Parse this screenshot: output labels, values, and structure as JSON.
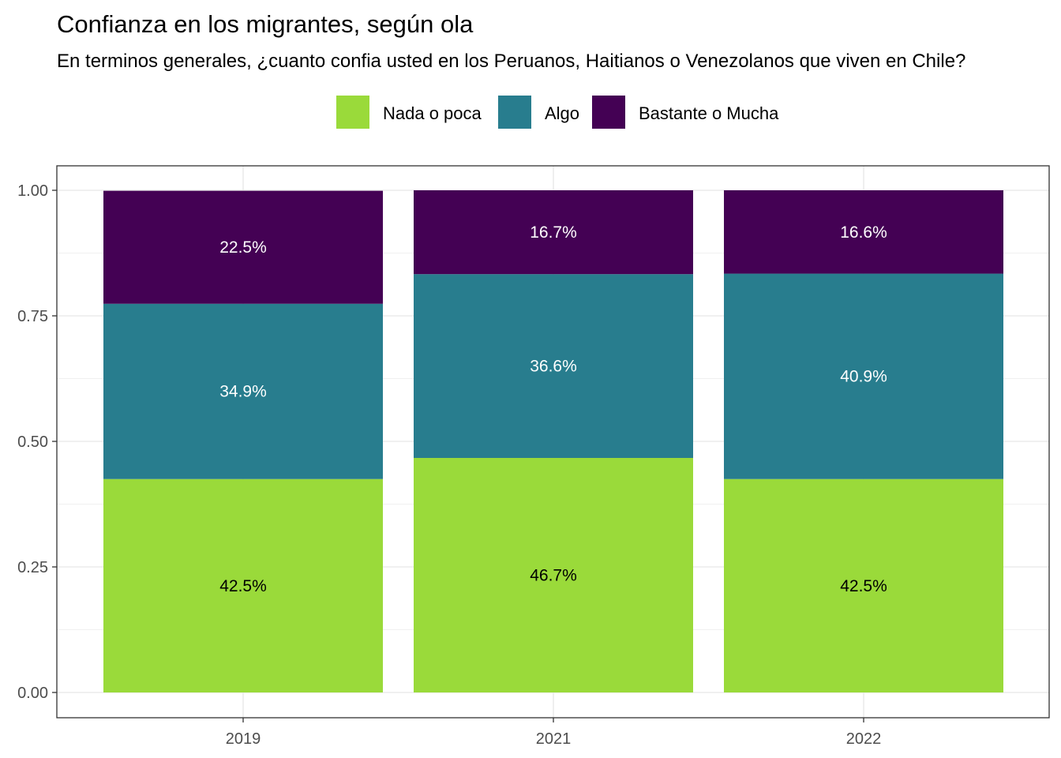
{
  "chart_data": {
    "type": "bar",
    "stacked": true,
    "title": "Confianza en los migrantes, según ola",
    "subtitle": "En terminos generales, ¿cuanto confia usted en los Peruanos, Haitianos o Venezolanos que viven en Chile?",
    "xlabel": "",
    "ylabel": "",
    "categories": [
      "2019",
      "2021",
      "2022"
    ],
    "ylim": [
      0,
      1
    ],
    "yticks": [
      "0.00",
      "0.25",
      "0.50",
      "0.75",
      "1.00"
    ],
    "grid": true,
    "legend_position": "top",
    "series": [
      {
        "name": "Nada o poca",
        "values": [
          0.425,
          0.467,
          0.425
        ],
        "labels": [
          "42.5%",
          "46.7%",
          "42.5%"
        ],
        "color": "#9ADA3A",
        "label_color": "#000000"
      },
      {
        "name": "Algo",
        "values": [
          0.349,
          0.366,
          0.409
        ],
        "labels": [
          "34.9%",
          "36.6%",
          "40.9%"
        ],
        "color": "#287D8E",
        "label_color": "#ffffff"
      },
      {
        "name": "Bastante o Mucha",
        "values": [
          0.225,
          0.167,
          0.166
        ],
        "labels": [
          "22.5%",
          "16.7%",
          "16.6%"
        ],
        "color": "#440154",
        "label_color": "#ffffff"
      }
    ]
  }
}
